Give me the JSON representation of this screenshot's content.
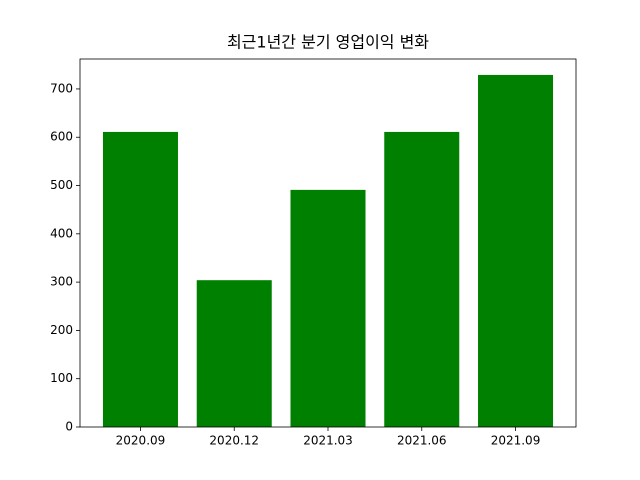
{
  "chart_data": {
    "type": "bar",
    "title": "최근1년간 분기 영업이익 변화",
    "categories": [
      "2020.09",
      "2020.12",
      "2021.03",
      "2021.06",
      "2021.09"
    ],
    "values": [
      611,
      304,
      491,
      611,
      729
    ],
    "color": "#008000",
    "ylim": [
      0,
      762
    ],
    "yticks": [
      0,
      100,
      200,
      300,
      400,
      500,
      600,
      700
    ],
    "grid": false
  }
}
